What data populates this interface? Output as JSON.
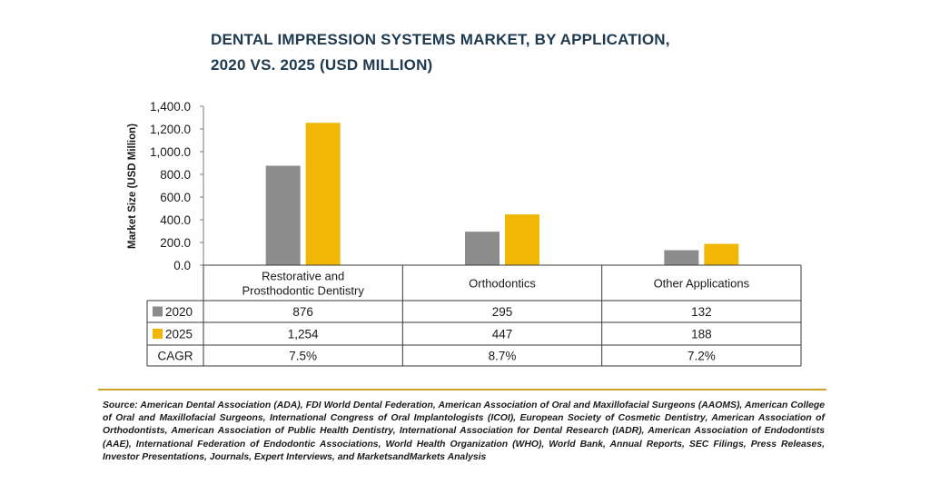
{
  "title": {
    "line1": "DENTAL IMPRESSION SYSTEMS MARKET, BY APPLICATION,",
    "line2": "2020 VS. 2025 (USD MILLION)"
  },
  "chart_data": {
    "type": "bar",
    "categories": [
      "Restorative and Prosthodontic Dentistry",
      "Orthodontics",
      "Other Applications"
    ],
    "category_lines": [
      [
        "Restorative and",
        "Prosthodontic Dentistry"
      ],
      [
        "Orthodontics"
      ],
      [
        "Other Applications"
      ]
    ],
    "series": [
      {
        "name": "2020",
        "values": [
          876,
          295,
          132
        ],
        "labels": [
          "876",
          "295",
          "132"
        ],
        "color": "#8c8c8c"
      },
      {
        "name": "2025",
        "values": [
          1254,
          447,
          188
        ],
        "labels": [
          "1,254",
          "447",
          "188"
        ],
        "color": "#f2b705"
      }
    ],
    "cagr": {
      "label": "CAGR",
      "values": [
        "7.5%",
        "8.7%",
        "7.2%"
      ]
    },
    "ylabel": "Market Size (USD Million)",
    "ylim": [
      0,
      1400
    ],
    "yticks": [
      "0.0",
      "200.0",
      "400.0",
      "600.0",
      "800.0",
      "1,000.0",
      "1,200.0",
      "1,400.0"
    ],
    "ytick_values": [
      0,
      200,
      400,
      600,
      800,
      1000,
      1200,
      1400
    ],
    "grid": false,
    "legend": "table-bottom"
  },
  "source": "Source: American Dental Association (ADA), FDI World Dental Federation, American Association of Oral and Maxillofacial Surgeons (AAOMS), American College of Oral and Maxillofacial Surgeons, International Congress of Oral Implantologists (ICOI), European Society of Cosmetic Dentistry, American Association of Orthodontists, American Association of Public Health Dentistry, International Association for Dental Research (IADR), American Association of Endodontists (AAE), International Federation of Endodontic Associations, World Health Organization (WHO), World Bank, Annual Reports, SEC Filings, Press Releases, Investor Presentations, Journals, Expert Interviews, and MarketsandMarkets Analysis"
}
